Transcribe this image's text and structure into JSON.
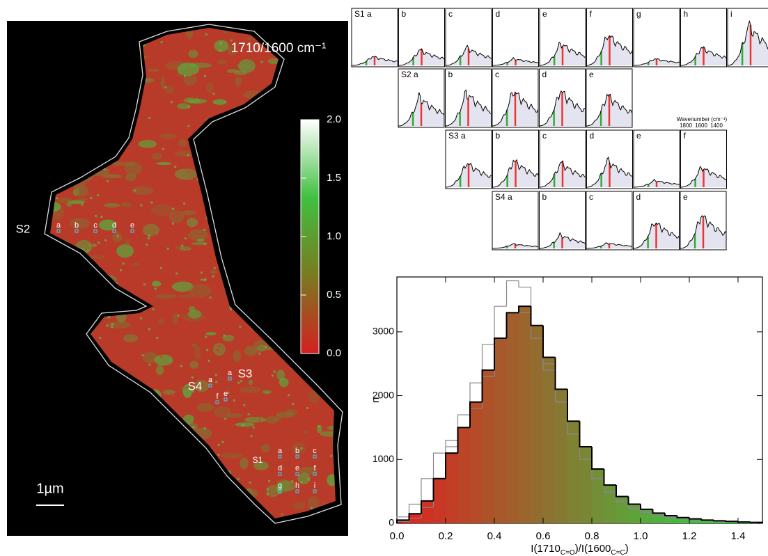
{
  "chart_data": [
    {
      "type": "map",
      "title": "1710/1600 cm⁻¹",
      "colorbar": {
        "ylim": [
          0,
          2
        ],
        "yticks": [
          {
            "value": 0,
            "label": "0.0"
          },
          0.5,
          {
            "value": 1,
            "label": "1.0"
          },
          1.5,
          {
            "value": 2,
            "label": "2.0"
          }
        ],
        "colors": [
          "#d42020",
          "#7a7a20",
          "#40c040",
          "#ffffff"
        ]
      },
      "scale_bar": "1µm",
      "sites": [
        {
          "name": "S1",
          "points": [
            "a",
            "b",
            "c",
            "d",
            "e",
            "f",
            "g",
            "h",
            "i"
          ]
        },
        {
          "name": "S2",
          "points": [
            "a",
            "b",
            "c",
            "d",
            "e"
          ]
        },
        {
          "name": "S3",
          "points": [
            "a",
            "e"
          ]
        },
        {
          "name": "S4",
          "points": [
            "a",
            "f"
          ]
        }
      ]
    },
    {
      "type": "spectra",
      "xlabel": "Wavenumber (cm⁻¹)",
      "xticks": [
        1800,
        1600,
        1400
      ],
      "rows": [
        {
          "panels": [
            {
              "label": "S1 a",
              "intensity": 0.2
            },
            {
              "label": "b",
              "intensity": 0.35
            },
            {
              "label": "c",
              "intensity": 0.4
            },
            {
              "label": "d",
              "intensity": 0.15
            },
            {
              "label": "e",
              "intensity": 0.5
            },
            {
              "label": "f",
              "intensity": 0.7
            },
            {
              "label": "g",
              "intensity": 0.15
            },
            {
              "label": "h",
              "intensity": 0.4
            },
            {
              "label": "i",
              "intensity": 0.9
            }
          ]
        },
        {
          "panels": [
            {
              "label": "S2 a",
              "intensity": 0.65
            },
            {
              "label": "b",
              "intensity": 0.75
            },
            {
              "label": "c",
              "intensity": 0.8
            },
            {
              "label": "d",
              "intensity": 0.8
            },
            {
              "label": "e",
              "intensity": 0.7
            }
          ]
        },
        {
          "panels": [
            {
              "label": "S3 a",
              "intensity": 0.55
            },
            {
              "label": "b",
              "intensity": 0.6
            },
            {
              "label": "c",
              "intensity": 0.55
            },
            {
              "label": "d",
              "intensity": 0.6
            },
            {
              "label": "e",
              "intensity": 0.15
            },
            {
              "label": "f",
              "intensity": 0.45
            }
          ]
        },
        {
          "panels": [
            {
              "label": "S4 a",
              "intensity": 0.1
            },
            {
              "label": "b",
              "intensity": 0.3
            },
            {
              "label": "c",
              "intensity": 0.12
            },
            {
              "label": "d",
              "intensity": 0.6
            },
            {
              "label": "e",
              "intensity": 0.75
            }
          ]
        }
      ]
    },
    {
      "type": "histogram",
      "ylabel": "n",
      "xlabel": [
        "I(1710",
        "C=O",
        ")/I(1600",
        "C=C",
        ")"
      ],
      "colors": [
        "#e02020",
        "#40c040"
      ],
      "bins": [
        0,
        0.05,
        0.1,
        0.15,
        0.2,
        0.25,
        0.3,
        0.35,
        0.4,
        0.45,
        0.5,
        0.55,
        0.6,
        0.65,
        0.7,
        0.75,
        0.8,
        0.85,
        0.9,
        0.95,
        1,
        1.05,
        1.1,
        1.15,
        1.2,
        1.25,
        1.3,
        1.35,
        1.4,
        1.45,
        1.5
      ],
      "series": [
        {
          "color": "#000000",
          "values": [
            50,
            150,
            350,
            700,
            1100,
            1500,
            1900,
            2400,
            2900,
            3300,
            3400,
            3100,
            2600,
            2100,
            1600,
            1200,
            850,
            600,
            420,
            300,
            220,
            160,
            120,
            90,
            70,
            50,
            40,
            30,
            20,
            15
          ]
        },
        {
          "color": "#888888",
          "values": [
            30,
            80,
            250,
            700,
            1200,
            1700,
            2200,
            2800,
            3400,
            3800,
            3700,
            3100,
            2500,
            1900,
            1400,
            1000,
            700,
            500,
            350,
            250,
            180,
            130,
            100,
            80,
            60,
            45,
            35,
            25,
            20,
            15
          ]
        },
        {
          "color": "#888888",
          "values": [
            100,
            300,
            700,
            1100,
            1300,
            1500,
            1800,
            2300,
            2900,
            3300,
            3300,
            2900,
            2400,
            1900,
            1400,
            1000,
            700,
            480,
            330,
            230,
            170,
            120,
            90,
            70,
            50,
            40,
            30,
            25,
            20,
            15
          ]
        }
      ],
      "xlim": [
        0,
        1.5
      ],
      "ylim": [
        0,
        3860
      ],
      "xticks": [
        {
          "value": 0,
          "label": "0.0"
        },
        0.2,
        0.4,
        0.6,
        0.8,
        {
          "value": 1,
          "label": "1.0"
        },
        1.2,
        1.4
      ],
      "yticks": [
        0,
        1000,
        2000,
        3000
      ]
    }
  ]
}
